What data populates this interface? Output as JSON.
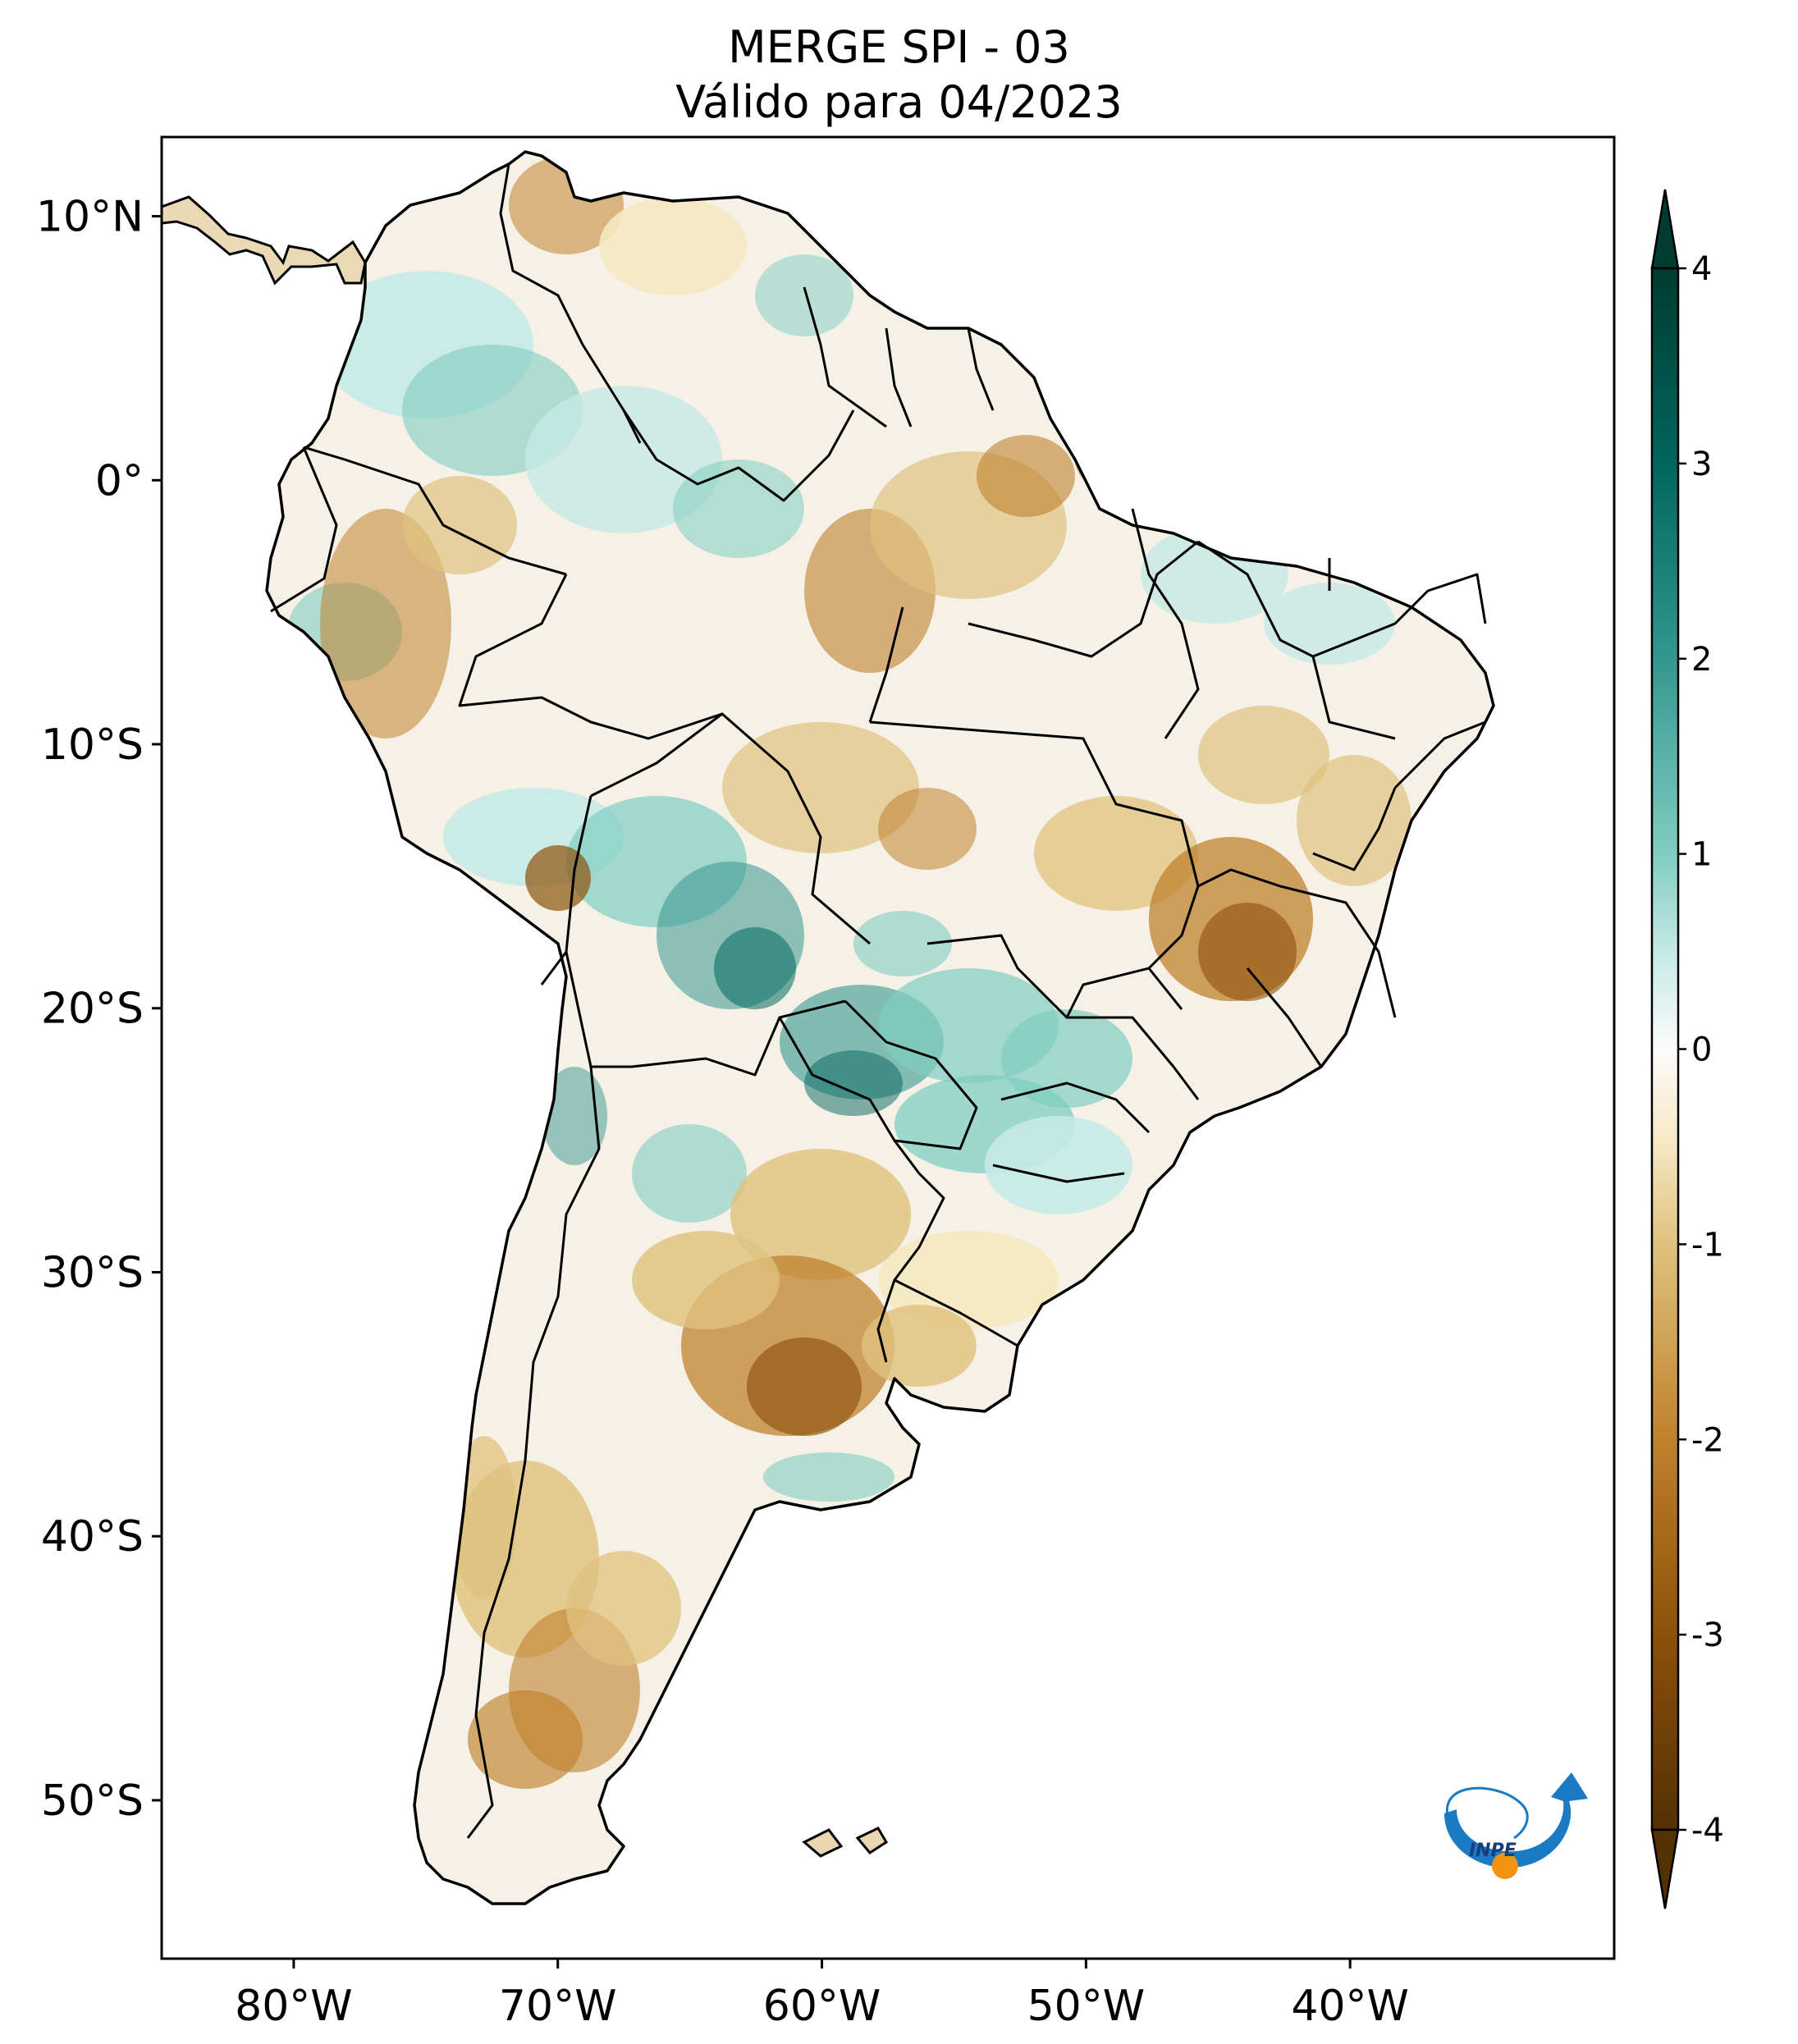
{
  "title": {
    "line1": "MERGE   SPI - 03",
    "line2": "Válido para 04/2023"
  },
  "map": {
    "region": "South America",
    "lon_range": [
      -85,
      -30
    ],
    "lat_range": [
      -56,
      13
    ],
    "lat_ticks": [
      {
        "value": 10,
        "label": "10°N"
      },
      {
        "value": 0,
        "label": "0°"
      },
      {
        "value": -10,
        "label": "10°S"
      },
      {
        "value": -20,
        "label": "20°S"
      },
      {
        "value": -30,
        "label": "30°S"
      },
      {
        "value": -40,
        "label": "40°S"
      },
      {
        "value": -50,
        "label": "50°S"
      }
    ],
    "lon_ticks": [
      {
        "value": -80,
        "label": "80°W"
      },
      {
        "value": -70,
        "label": "70°W"
      },
      {
        "value": -60,
        "label": "60°W"
      },
      {
        "value": -50,
        "label": "50°W"
      },
      {
        "value": -40,
        "label": "40°W"
      }
    ]
  },
  "colorbar": {
    "min": -4,
    "max": 4,
    "ticks": [
      {
        "value": 4,
        "label": "4"
      },
      {
        "value": 3,
        "label": "3"
      },
      {
        "value": 2,
        "label": "2"
      },
      {
        "value": 1,
        "label": "1"
      },
      {
        "value": 0,
        "label": "0"
      },
      {
        "value": -1,
        "label": "-1"
      },
      {
        "value": -2,
        "label": "-2"
      },
      {
        "value": -3,
        "label": "-3"
      },
      {
        "value": -4,
        "label": "-4"
      }
    ],
    "colors": {
      "dry_extreme": "#543005",
      "dry_strong": "#8c510a",
      "dry_moderate": "#bf812d",
      "dry_mild": "#dfc27d",
      "dry_weak": "#f6e8c3",
      "neutral": "#f5f5f5",
      "wet_weak": "#c7eae5",
      "wet_mild": "#80cdc1",
      "wet_moderate": "#35978f",
      "wet_strong": "#01665e",
      "wet_extreme": "#003c30"
    }
  },
  "logo": {
    "text": "INPE"
  }
}
